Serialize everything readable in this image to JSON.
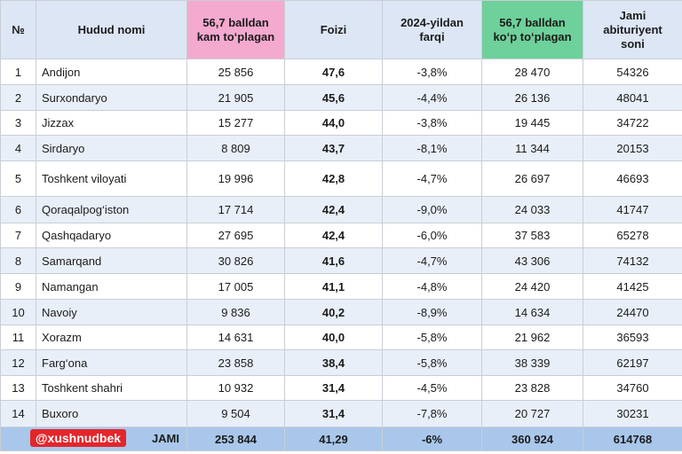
{
  "headers": {
    "num": "№",
    "name": "Hudud nomi",
    "below_line1": "56,7 balldan",
    "below_line2": "kam to‘plagan",
    "pct": "Foizi",
    "diff_line1": "2024-yildan",
    "diff_line2": "farqi",
    "above_line1": "56,7 balldan",
    "above_line2": "ko‘p to‘plagan",
    "total_line1": "Jami",
    "total_line2": "abituriyent",
    "total_line3": "soni"
  },
  "rows": [
    {
      "n": "1",
      "name": "Andijon",
      "below": "25 856",
      "pct": "47,6",
      "diff": "-3,8%",
      "above": "28 470",
      "total": "54326"
    },
    {
      "n": "2",
      "name": "Surxondaryo",
      "below": "21 905",
      "pct": "45,6",
      "diff": "-4,4%",
      "above": "26 136",
      "total": "48041"
    },
    {
      "n": "3",
      "name": "Jizzax",
      "below": "15 277",
      "pct": "44,0",
      "diff": "-3,8%",
      "above": "19 445",
      "total": "34722"
    },
    {
      "n": "4",
      "name": "Sirdaryo",
      "below": "8 809",
      "pct": "43,7",
      "diff": "-8,1%",
      "above": "11 344",
      "total": "20153"
    },
    {
      "n": "5",
      "name": "Toshkent viloyati",
      "below": "19 996",
      "pct": "42,8",
      "diff": "-4,7%",
      "above": "26 697",
      "total": "46693"
    },
    {
      "n": "6",
      "name": "Qoraqalpog‘iston",
      "below": "17 714",
      "pct": "42,4",
      "diff": "-9,0%",
      "above": "24 033",
      "total": "41747"
    },
    {
      "n": "7",
      "name": "Qashqadaryo",
      "below": "27 695",
      "pct": "42,4",
      "diff": "-6,0%",
      "above": "37 583",
      "total": "65278"
    },
    {
      "n": "8",
      "name": "Samarqand",
      "below": "30 826",
      "pct": "41,6",
      "diff": "-4,7%",
      "above": "43 306",
      "total": "74132"
    },
    {
      "n": "9",
      "name": "Namangan",
      "below": "17 005",
      "pct": "41,1",
      "diff": "-4,8%",
      "above": "24 420",
      "total": "41425"
    },
    {
      "n": "10",
      "name": "Navoiy",
      "below": "9 836",
      "pct": "40,2",
      "diff": "-8,9%",
      "above": "14 634",
      "total": "24470"
    },
    {
      "n": "11",
      "name": "Xorazm",
      "below": "14 631",
      "pct": "40,0",
      "diff": "-5,8%",
      "above": "21 962",
      "total": "36593"
    },
    {
      "n": "12",
      "name": "Farg‘ona",
      "below": "23 858",
      "pct": "38,4",
      "diff": "-5,8%",
      "above": "38 339",
      "total": "62197"
    },
    {
      "n": "13",
      "name": "Toshkent shahri",
      "below": "10 932",
      "pct": "31,4",
      "diff": "-4,5%",
      "above": "23 828",
      "total": "34760"
    },
    {
      "n": "14",
      "name": "Buxoro",
      "below": "9 504",
      "pct": "31,4",
      "diff": "-7,8%",
      "above": "20 727",
      "total": "30231"
    }
  ],
  "footer": {
    "handle": "@xushnudbek",
    "label": "JAMI",
    "below": "253 844",
    "pct": "41,29",
    "diff": "-6%",
    "above": "360 924",
    "total": "614768"
  },
  "colors": {
    "header_bg": "#dce6f5",
    "below_header": "#f4a9cf",
    "above_header": "#6ed09a",
    "stripe": "#e9eff9",
    "footer_bg": "#a9c7ea",
    "handle_badge": "#e3262b"
  }
}
